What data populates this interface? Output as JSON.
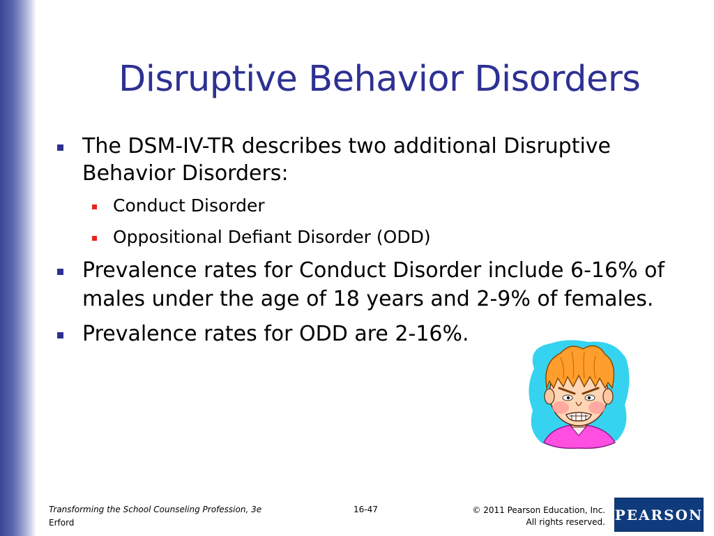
{
  "slide": {
    "title": "Disruptive Behavior Disorders",
    "bullets": [
      {
        "lines": [
          "The DSM-IV-TR describes two additional Disruptive",
          "Behavior Disorders:"
        ],
        "sub_bullets": [
          "Conduct Disorder",
          "Oppositional Defiant Disorder (ODD)"
        ]
      },
      {
        "lines": [
          "Prevalence rates for Conduct Disorder include 6-16% of",
          "males under the age of 18 years and 2-9% of females."
        ]
      },
      {
        "lines": [
          "Prevalence rates for ODD are 2-16%."
        ]
      }
    ],
    "illustration": "angry-child-clipart",
    "colors": {
      "title": "#2e3192",
      "bullet": "#2e3192",
      "sub_bullet": "#e8231f",
      "sidebar": "#3a4694"
    }
  },
  "footer": {
    "book_title": "Transforming the School Counseling Profession, 3e",
    "author": "Erford",
    "page_number": "16-47",
    "copyright_line1": "© 2011 Pearson Education, Inc.",
    "copyright_line2": "All rights reserved.",
    "publisher_logo": "PEARSON"
  }
}
